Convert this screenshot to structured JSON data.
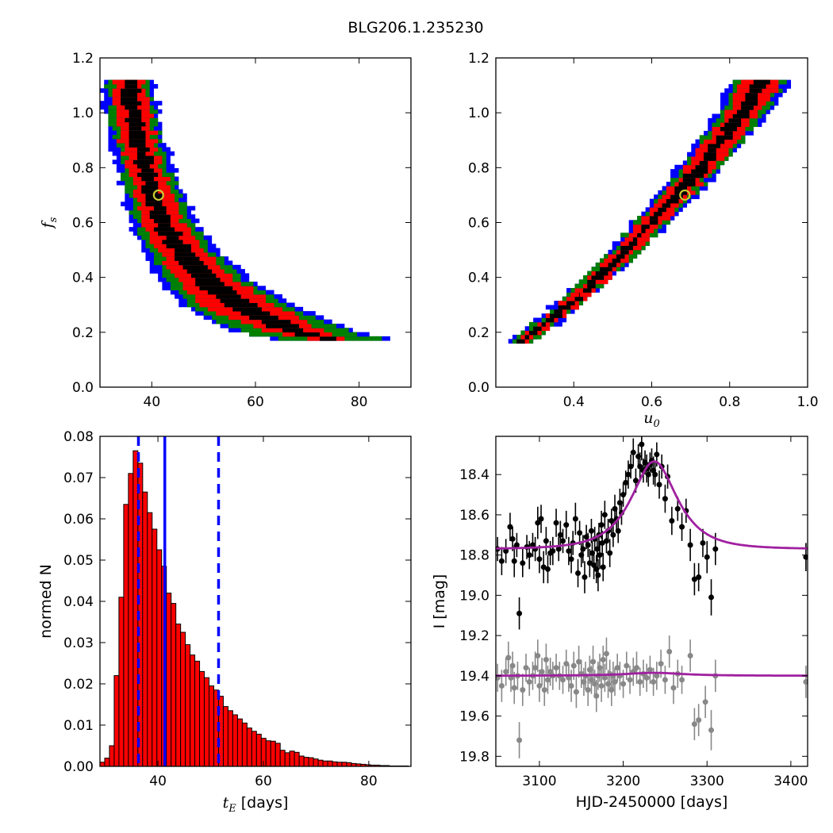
{
  "figure": {
    "title": "BLG206.1.235230"
  },
  "colors": {
    "level1": "#000000",
    "level2": "#ff0000",
    "level3": "#008000",
    "level4": "#0000ff",
    "bar_fill": "#ff0000",
    "marker": "#cccc33",
    "model": "#a020a0",
    "data_main": "#000000",
    "data_secondary": "#888888",
    "lines": "#0000ff"
  },
  "chart_data": [
    {
      "id": "fs_vs_tE",
      "type": "heatmap",
      "xlabel": "",
      "ylabel": "f_s",
      "ylabel_base": "f",
      "ylabel_sub": "s",
      "xlim": [
        30,
        90
      ],
      "ylim": [
        0.0,
        1.2
      ],
      "xticks": [
        40,
        60,
        80
      ],
      "xtick_labels": [
        "40",
        "60",
        "80"
      ],
      "yticks": [
        0.0,
        0.2,
        0.4,
        0.6,
        0.8,
        1.0,
        1.2
      ],
      "ytick_labels": [
        "0.0",
        "0.2",
        "0.4",
        "0.6",
        "0.8",
        "1.0",
        "1.2"
      ],
      "confidence_levels": [
        "level1",
        "level2",
        "level3",
        "level4"
      ],
      "ridge": {
        "fs": [
          1.12,
          1.0,
          0.9,
          0.8,
          0.7,
          0.6,
          0.5,
          0.4,
          0.3,
          0.2,
          0.17
        ],
        "x_center": [
          35.5,
          36.2,
          37.3,
          38.6,
          40.4,
          42.3,
          45.5,
          50.0,
          56.5,
          68.0,
          76.0
        ],
        "half_width_level1": [
          1.4,
          1.4,
          1.4,
          1.4,
          1.5,
          1.6,
          2.0,
          2.4,
          3.0,
          2.5,
          1.5
        ],
        "half_width_level2": [
          3.2,
          3.2,
          3.2,
          3.4,
          3.6,
          3.9,
          4.5,
          5.5,
          7.5,
          5.5,
          3.0
        ],
        "half_width_level3": [
          4.2,
          4.3,
          4.4,
          4.6,
          4.9,
          5.2,
          6.0,
          7.3,
          9.5,
          10.5,
          10.0
        ],
        "half_width_level4": [
          5.0,
          5.2,
          5.4,
          5.6,
          6.0,
          6.4,
          7.4,
          8.8,
          11.0,
          12.0,
          11.5
        ]
      },
      "best_fit": {
        "x": 41.3,
        "y": 0.7
      }
    },
    {
      "id": "fs_vs_u0",
      "type": "heatmap",
      "xlabel": "u_0",
      "xlabel_base": "u",
      "xlabel_sub": "0",
      "ylabel": "",
      "xlim": [
        0.2,
        1.0
      ],
      "ylim": [
        0.0,
        1.2
      ],
      "xticks": [
        0.4,
        0.6,
        0.8,
        1.0
      ],
      "xtick_labels": [
        "0.4",
        "0.6",
        "0.8",
        "1.0"
      ],
      "yticks": [
        0.0,
        0.2,
        0.4,
        0.6,
        0.8,
        1.0,
        1.2
      ],
      "ytick_labels": [
        "0.0",
        "0.2",
        "0.4",
        "0.6",
        "0.8",
        "1.0",
        "1.2"
      ],
      "confidence_levels": [
        "level1",
        "level2",
        "level3",
        "level4"
      ],
      "ridge": {
        "fs": [
          0.16,
          0.2,
          0.3,
          0.4,
          0.5,
          0.6,
          0.7,
          0.8,
          0.9,
          1.0,
          1.12
        ],
        "x_center": [
          0.26,
          0.3,
          0.385,
          0.465,
          0.535,
          0.6,
          0.665,
          0.725,
          0.78,
          0.835,
          0.885
        ],
        "half_width_level1": [
          0.008,
          0.009,
          0.01,
          0.011,
          0.012,
          0.013,
          0.014,
          0.015,
          0.017,
          0.018,
          0.02
        ],
        "half_width_level2": [
          0.018,
          0.02,
          0.022,
          0.024,
          0.027,
          0.03,
          0.033,
          0.036,
          0.04,
          0.044,
          0.048
        ],
        "half_width_level3": [
          0.024,
          0.027,
          0.03,
          0.033,
          0.036,
          0.04,
          0.044,
          0.048,
          0.053,
          0.058,
          0.064
        ],
        "half_width_level4": [
          0.03,
          0.033,
          0.037,
          0.041,
          0.045,
          0.049,
          0.054,
          0.059,
          0.065,
          0.071,
          0.078
        ]
      },
      "best_fit": {
        "x": 0.685,
        "y": 0.7
      }
    },
    {
      "id": "tE_histogram",
      "type": "bar",
      "xlabel": "t_E [days]",
      "xlabel_base": "t",
      "xlabel_sub": "E",
      "xlabel_units": " [days]",
      "ylabel": "normed N",
      "xlim": [
        29,
        88
      ],
      "ylim": [
        0.0,
        0.08
      ],
      "xticks": [
        40,
        60,
        80
      ],
      "xtick_labels": [
        "40",
        "60",
        "80"
      ],
      "yticks": [
        0.0,
        0.01,
        0.02,
        0.03,
        0.04,
        0.05,
        0.06,
        0.07,
        0.08
      ],
      "ytick_labels": [
        "0.00",
        "0.01",
        "0.02",
        "0.03",
        "0.04",
        "0.05",
        "0.06",
        "0.07",
        "0.08"
      ],
      "bin_start": 29.0,
      "bin_width": 0.9,
      "values": [
        0.001,
        0.002,
        0.005,
        0.022,
        0.041,
        0.0635,
        0.071,
        0.0765,
        0.0735,
        0.0665,
        0.0615,
        0.0575,
        0.0525,
        0.0485,
        0.042,
        0.0395,
        0.0345,
        0.0325,
        0.0295,
        0.027,
        0.0255,
        0.023,
        0.0215,
        0.0195,
        0.0185,
        0.017,
        0.0145,
        0.0135,
        0.0125,
        0.0115,
        0.0105,
        0.0093,
        0.0085,
        0.0078,
        0.0068,
        0.0062,
        0.0061,
        0.0056,
        0.0039,
        0.0033,
        0.0037,
        0.0034,
        0.0025,
        0.0022,
        0.0021,
        0.0018,
        0.0015,
        0.0013,
        0.0013,
        0.0011,
        0.001,
        0.001,
        0.0009,
        0.0007,
        0.0006,
        0.0005,
        0.0004,
        0.0003,
        0.0003,
        0.0002,
        0.0002,
        0.0001,
        0.0001,
        0.0001,
        0.0001
      ],
      "median": 41.3,
      "lower": 36.3,
      "upper": 51.5
    },
    {
      "id": "light_curve",
      "type": "scatter",
      "xlabel": "HJD-2450000 [days]",
      "ylabel": "I [mag]",
      "xlim": [
        3048,
        3420
      ],
      "ylim": [
        19.85,
        18.21
      ],
      "inverted_y": true,
      "xticks": [
        3100,
        3200,
        3300,
        3400
      ],
      "xtick_labels": [
        "3100",
        "3200",
        "3300",
        "3400"
      ],
      "yticks": [
        18.4,
        18.6,
        18.8,
        19.0,
        19.2,
        19.4,
        19.6,
        19.8
      ],
      "ytick_labels": [
        "18.4",
        "18.6",
        "18.8",
        "19.0",
        "19.2",
        "19.4",
        "19.6",
        "19.8"
      ],
      "model_main": {
        "t0": 3237,
        "tE": 41.3,
        "u0": 0.685,
        "fs": 0.7,
        "base_mag": 18.77,
        "t_range": [
          3048,
          3420
        ]
      },
      "model_secondary": {
        "t0": 3237,
        "tE": 41.3,
        "base_mag": 19.4,
        "bump_mag": 0.015,
        "t_range": [
          3048,
          3420
        ]
      },
      "series_main": [
        [
          3050,
          18.77,
          0.06
        ],
        [
          3055,
          18.83,
          0.07
        ],
        [
          3060,
          18.78,
          0.06
        ],
        [
          3065,
          18.66,
          0.07
        ],
        [
          3068,
          18.72,
          0.06
        ],
        [
          3070,
          18.83,
          0.08
        ],
        [
          3073,
          18.75,
          0.06
        ],
        [
          3076,
          19.09,
          0.08
        ],
        [
          3080,
          18.84,
          0.07
        ],
        [
          3085,
          18.76,
          0.06
        ],
        [
          3088,
          18.8,
          0.07
        ],
        [
          3092,
          18.75,
          0.06
        ],
        [
          3095,
          18.77,
          0.06
        ],
        [
          3098,
          18.64,
          0.08
        ],
        [
          3100,
          18.82,
          0.07
        ],
        [
          3102,
          18.62,
          0.07
        ],
        [
          3105,
          18.86,
          0.08
        ],
        [
          3108,
          18.73,
          0.07
        ],
        [
          3110,
          18.87,
          0.07
        ],
        [
          3113,
          18.79,
          0.06
        ],
        [
          3116,
          18.78,
          0.07
        ],
        [
          3120,
          18.64,
          0.07
        ],
        [
          3123,
          18.77,
          0.06
        ],
        [
          3125,
          18.7,
          0.07
        ],
        [
          3128,
          18.73,
          0.06
        ],
        [
          3132,
          18.65,
          0.07
        ],
        [
          3135,
          18.78,
          0.07
        ],
        [
          3138,
          18.82,
          0.07
        ],
        [
          3140,
          18.74,
          0.06
        ],
        [
          3143,
          18.62,
          0.08
        ],
        [
          3146,
          18.89,
          0.07
        ],
        [
          3148,
          18.69,
          0.06
        ],
        [
          3150,
          18.8,
          0.06
        ],
        [
          3152,
          18.77,
          0.07
        ],
        [
          3154,
          18.91,
          0.08
        ],
        [
          3156,
          18.71,
          0.06
        ],
        [
          3158,
          18.75,
          0.06
        ],
        [
          3160,
          18.84,
          0.07
        ],
        [
          3162,
          18.68,
          0.06
        ],
        [
          3163,
          18.79,
          0.06
        ],
        [
          3165,
          18.85,
          0.07
        ],
        [
          3166,
          18.72,
          0.06
        ],
        [
          3168,
          18.87,
          0.07
        ],
        [
          3169,
          18.77,
          0.06
        ],
        [
          3170,
          18.9,
          0.08
        ],
        [
          3171,
          18.7,
          0.06
        ],
        [
          3172,
          18.8,
          0.07
        ],
        [
          3174,
          18.65,
          0.07
        ],
        [
          3175,
          18.74,
          0.06
        ],
        [
          3176,
          18.86,
          0.07
        ],
        [
          3178,
          18.6,
          0.07
        ],
        [
          3180,
          18.73,
          0.06
        ],
        [
          3182,
          18.68,
          0.06
        ],
        [
          3184,
          18.79,
          0.07
        ],
        [
          3186,
          18.63,
          0.06
        ],
        [
          3188,
          18.7,
          0.06
        ],
        [
          3190,
          18.57,
          0.07
        ],
        [
          3192,
          18.62,
          0.06
        ],
        [
          3194,
          18.68,
          0.06
        ],
        [
          3196,
          18.54,
          0.07
        ],
        [
          3198,
          18.59,
          0.06
        ],
        [
          3200,
          18.5,
          0.06
        ],
        [
          3203,
          18.44,
          0.06
        ],
        [
          3206,
          18.4,
          0.07
        ],
        [
          3209,
          18.36,
          0.06
        ],
        [
          3212,
          18.29,
          0.07
        ],
        [
          3215,
          18.43,
          0.06
        ],
        [
          3218,
          18.31,
          0.06
        ],
        [
          3220,
          18.36,
          0.07
        ],
        [
          3222,
          18.25,
          0.08
        ],
        [
          3224,
          18.38,
          0.06
        ],
        [
          3226,
          18.34,
          0.06
        ],
        [
          3228,
          18.37,
          0.07
        ],
        [
          3230,
          18.4,
          0.06
        ],
        [
          3232,
          18.35,
          0.06
        ],
        [
          3234,
          18.33,
          0.06
        ],
        [
          3236,
          18.38,
          0.07
        ],
        [
          3238,
          18.4,
          0.06
        ],
        [
          3240,
          18.3,
          0.06
        ],
        [
          3243,
          18.45,
          0.07
        ],
        [
          3246,
          18.36,
          0.06
        ],
        [
          3250,
          18.52,
          0.07
        ],
        [
          3253,
          18.41,
          0.06
        ],
        [
          3258,
          18.63,
          0.07
        ],
        [
          3265,
          18.57,
          0.06
        ],
        [
          3270,
          18.66,
          0.07
        ],
        [
          3275,
          18.58,
          0.06
        ],
        [
          3280,
          18.75,
          0.08
        ],
        [
          3285,
          18.92,
          0.08
        ],
        [
          3290,
          18.91,
          0.07
        ],
        [
          3295,
          18.74,
          0.07
        ],
        [
          3300,
          18.81,
          0.08
        ],
        [
          3305,
          19.01,
          0.09
        ],
        [
          3310,
          18.77,
          0.08
        ],
        [
          3418,
          18.81,
          0.07
        ]
      ],
      "series_secondary": [
        [
          3050,
          19.41,
          0.07
        ],
        [
          3055,
          19.45,
          0.08
        ],
        [
          3060,
          19.38,
          0.07
        ],
        [
          3063,
          19.31,
          0.08
        ],
        [
          3066,
          19.41,
          0.07
        ],
        [
          3068,
          19.35,
          0.07
        ],
        [
          3070,
          19.46,
          0.08
        ],
        [
          3074,
          19.4,
          0.07
        ],
        [
          3076,
          19.72,
          0.09
        ],
        [
          3080,
          19.47,
          0.08
        ],
        [
          3084,
          19.36,
          0.07
        ],
        [
          3088,
          19.43,
          0.07
        ],
        [
          3092,
          19.4,
          0.07
        ],
        [
          3095,
          19.36,
          0.08
        ],
        [
          3098,
          19.3,
          0.08
        ],
        [
          3100,
          19.45,
          0.08
        ],
        [
          3103,
          19.38,
          0.07
        ],
        [
          3106,
          19.47,
          0.08
        ],
        [
          3108,
          19.32,
          0.08
        ],
        [
          3110,
          19.42,
          0.07
        ],
        [
          3113,
          19.38,
          0.07
        ],
        [
          3116,
          19.4,
          0.07
        ],
        [
          3120,
          19.36,
          0.07
        ],
        [
          3124,
          19.4,
          0.07
        ],
        [
          3128,
          19.42,
          0.07
        ],
        [
          3132,
          19.34,
          0.07
        ],
        [
          3135,
          19.41,
          0.07
        ],
        [
          3138,
          19.45,
          0.08
        ],
        [
          3141,
          19.35,
          0.07
        ],
        [
          3144,
          19.48,
          0.08
        ],
        [
          3147,
          19.33,
          0.08
        ],
        [
          3150,
          19.39,
          0.07
        ],
        [
          3153,
          19.43,
          0.07
        ],
        [
          3155,
          19.4,
          0.07
        ],
        [
          3158,
          19.47,
          0.08
        ],
        [
          3160,
          19.37,
          0.07
        ],
        [
          3162,
          19.42,
          0.07
        ],
        [
          3164,
          19.33,
          0.08
        ],
        [
          3166,
          19.44,
          0.07
        ],
        [
          3168,
          19.5,
          0.08
        ],
        [
          3170,
          19.4,
          0.07
        ],
        [
          3172,
          19.36,
          0.07
        ],
        [
          3174,
          19.45,
          0.08
        ],
        [
          3176,
          19.32,
          0.07
        ],
        [
          3178,
          19.41,
          0.07
        ],
        [
          3180,
          19.29,
          0.08
        ],
        [
          3182,
          19.44,
          0.07
        ],
        [
          3184,
          19.39,
          0.07
        ],
        [
          3186,
          19.47,
          0.08
        ],
        [
          3188,
          19.4,
          0.07
        ],
        [
          3190,
          19.43,
          0.07
        ],
        [
          3193,
          19.36,
          0.07
        ],
        [
          3196,
          19.4,
          0.07
        ],
        [
          3200,
          19.44,
          0.07
        ],
        [
          3204,
          19.35,
          0.07
        ],
        [
          3208,
          19.42,
          0.07
        ],
        [
          3212,
          19.38,
          0.07
        ],
        [
          3216,
          19.36,
          0.08
        ],
        [
          3220,
          19.43,
          0.07
        ],
        [
          3224,
          19.39,
          0.07
        ],
        [
          3228,
          19.41,
          0.07
        ],
        [
          3232,
          19.37,
          0.07
        ],
        [
          3236,
          19.43,
          0.07
        ],
        [
          3240,
          19.4,
          0.07
        ],
        [
          3245,
          19.34,
          0.07
        ],
        [
          3250,
          19.42,
          0.07
        ],
        [
          3255,
          19.28,
          0.08
        ],
        [
          3260,
          19.46,
          0.08
        ],
        [
          3265,
          19.39,
          0.07
        ],
        [
          3270,
          19.42,
          0.07
        ],
        [
          3280,
          19.3,
          0.08
        ],
        [
          3285,
          19.64,
          0.08
        ],
        [
          3290,
          19.62,
          0.08
        ],
        [
          3298,
          19.53,
          0.08
        ],
        [
          3305,
          19.67,
          0.1
        ],
        [
          3310,
          19.4,
          0.08
        ],
        [
          3418,
          19.43,
          0.08
        ]
      ]
    }
  ]
}
